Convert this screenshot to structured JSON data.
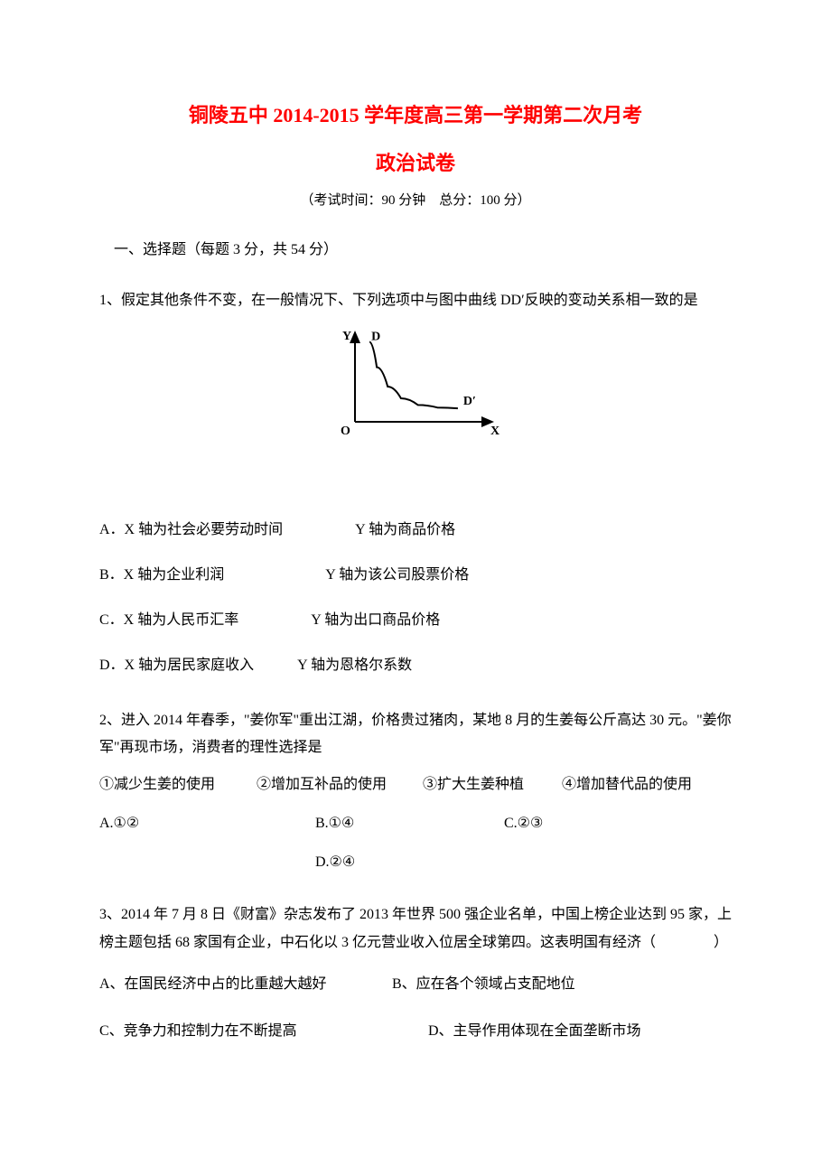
{
  "header": {
    "title_main": "铜陵五中 2014-2015 学年度高三第一学期第二次月考",
    "title_sub": "政治试卷",
    "exam_info": "（考试时间：90 分钟　总分：100 分）"
  },
  "section1": {
    "heading": "一、选择题（每题 3 分，共 54 分）"
  },
  "q1": {
    "text": "1、假定其他条件不变，在一般情况下、下列选项中与图中曲线 DD′反映的变动关系相一致的是",
    "optA": "A．X 轴为社会必要劳动时间　　　　　Y 轴为商品价格",
    "optB": "B．X 轴为企业利润　　　　　　　Y 轴为该公司股票价格",
    "optC": "C．X 轴为人民币汇率　　　　　Y 轴为出口商品价格",
    "optD": "D．X 轴为居民家庭收入　　　Y 轴为恩格尔系数"
  },
  "q1_chart": {
    "type": "line",
    "background_color": "#ffffff",
    "axis_color": "#000000",
    "curve_color": "#000000",
    "line_width": 2,
    "width": 190,
    "height": 125,
    "xlabel": "X",
    "ylabel": "Y",
    "dlabel": "D",
    "dprime": "D′",
    "olabel": "O",
    "xlim": [
      0,
      100
    ],
    "ylim": [
      0,
      100
    ],
    "curve_points": [
      [
        12,
        95
      ],
      [
        18,
        65
      ],
      [
        27,
        42
      ],
      [
        38,
        28
      ],
      [
        52,
        20
      ],
      [
        68,
        17
      ],
      [
        85,
        16
      ]
    ],
    "label_fontsize": 14
  },
  "q2": {
    "text": "2、进入 2014 年春季，\"姜你军\"重出江湖，价格贵过猪肉，某地 8 月的生姜每公斤高达 30 元。\"姜你军\"再现市场，消费者的理性选择是",
    "c1": "①减少生姜的使用",
    "c2": "②增加互补品的使用",
    "c3": "③扩大生姜种植",
    "c4": "④增加替代品的使用",
    "a": "A.①②",
    "b": "B.①④",
    "c": "C.②③",
    "d": "D.②④"
  },
  "q3": {
    "text": "3、2014 年 7 月 8 日《财富》杂志发布了 2013 年世界 500 强企业名单，中国上榜企业达到 95 家，上榜主题包括 68 家国有企业，中石化以 3 亿元营业收入位居全球第四。这表明国有经济（　　　　）",
    "a": "A、在国民经济中占的比重越大越好",
    "b": "B、应在各个领域占支配地位",
    "c": "C、竞争力和控制力在不断提高",
    "d": "D、主导作用体现在全面垄断市场"
  }
}
